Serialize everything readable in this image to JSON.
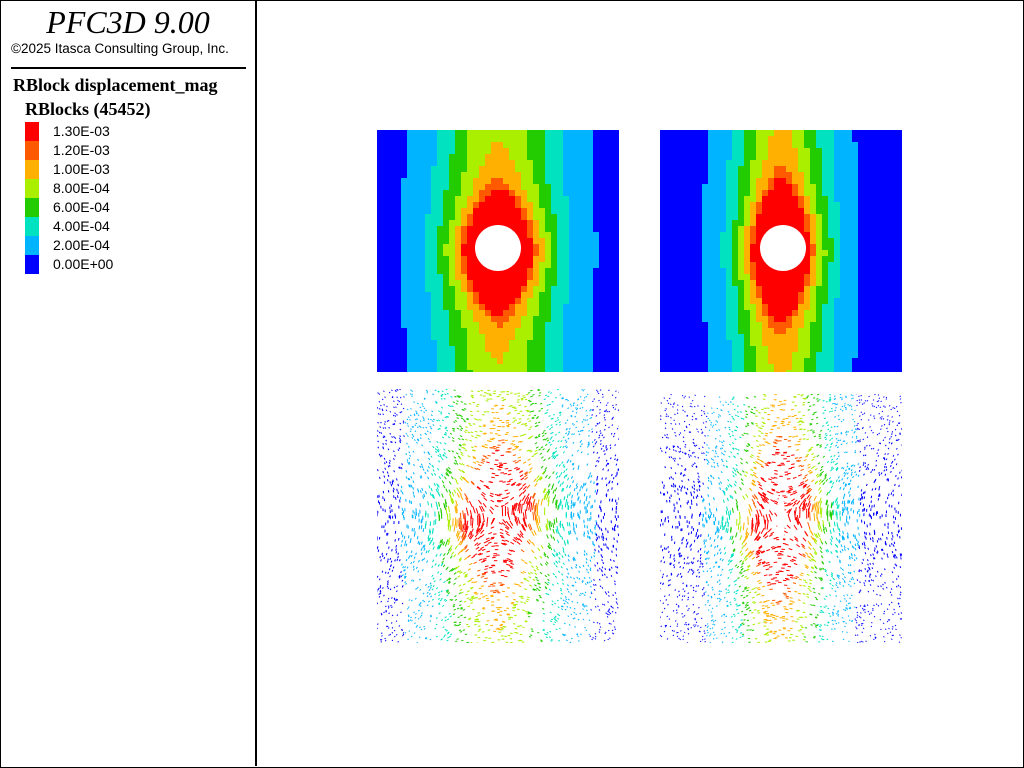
{
  "app": {
    "title": "PFC3D 9.00",
    "copyright": "©2025 Itasca Consulting Group, Inc."
  },
  "legend": {
    "plot_title": "RBlock displacement_mag",
    "heading": "RBlocks (45452)",
    "items": [
      {
        "label": "1.30E-03",
        "color": "#ff0000"
      },
      {
        "label": "1.20E-03",
        "color": "#ff5a00"
      },
      {
        "label": "1.00E-03",
        "color": "#ffb000"
      },
      {
        "label": "8.00E-04",
        "color": "#aaee00"
      },
      {
        "label": "6.00E-04",
        "color": "#22cc00"
      },
      {
        "label": "4.00E-04",
        "color": "#00e2c0"
      },
      {
        "label": "2.00E-04",
        "color": "#00b4ff"
      },
      {
        "label": "0.00E+00",
        "color": "#0000ff"
      }
    ]
  },
  "panels": [
    {
      "name": "contour-left",
      "kind": "contour"
    },
    {
      "name": "contour-right",
      "kind": "contour"
    },
    {
      "name": "vectors-left",
      "kind": "vectors"
    },
    {
      "name": "vectors-right",
      "kind": "vectors"
    }
  ]
}
